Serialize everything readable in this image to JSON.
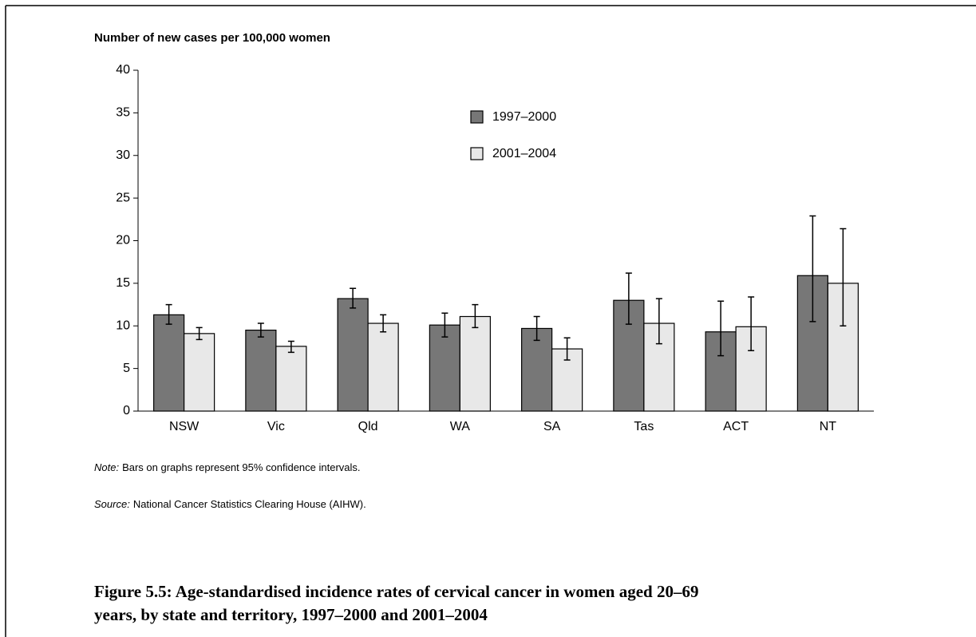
{
  "chart_data": {
    "type": "bar",
    "y_axis_title": "Number of new cases per 100,000 women",
    "categories": [
      "NSW",
      "Vic",
      "Qld",
      "WA",
      "SA",
      "Tas",
      "ACT",
      "NT"
    ],
    "series": [
      {
        "name": "1997–2000",
        "color": "#777777",
        "values": [
          11.3,
          9.5,
          13.2,
          10.1,
          9.7,
          13.0,
          9.3,
          15.9
        ],
        "lower": [
          10.2,
          8.7,
          12.1,
          8.7,
          8.3,
          10.2,
          6.5,
          10.5
        ],
        "upper": [
          12.5,
          10.3,
          14.4,
          11.5,
          11.1,
          16.2,
          12.9,
          22.9
        ]
      },
      {
        "name": "2001–2004",
        "color": "#e8e8e8",
        "values": [
          9.1,
          7.6,
          10.3,
          11.1,
          7.3,
          10.3,
          9.9,
          15.0
        ],
        "lower": [
          8.4,
          6.9,
          9.3,
          9.8,
          6.0,
          7.9,
          7.1,
          10.0
        ],
        "upper": [
          9.8,
          8.2,
          11.3,
          12.5,
          8.6,
          13.2,
          13.4,
          21.4
        ]
      }
    ],
    "ylim": [
      0,
      40
    ],
    "yticks": [
      0,
      5,
      10,
      15,
      20,
      25,
      30,
      35,
      40
    ],
    "note": {
      "label": "Note:",
      "text": "Bars on graphs represent 95% confidence intervals."
    },
    "source": {
      "label": "Source:",
      "text": "National Cancer Statistics Clearing House (AIHW)."
    },
    "caption": [
      "Figure 5.5: Age-standardised incidence rates of cervical cancer in women aged 20–69",
      "years, by state and territory, 1997–2000 and 2001–2004"
    ]
  }
}
